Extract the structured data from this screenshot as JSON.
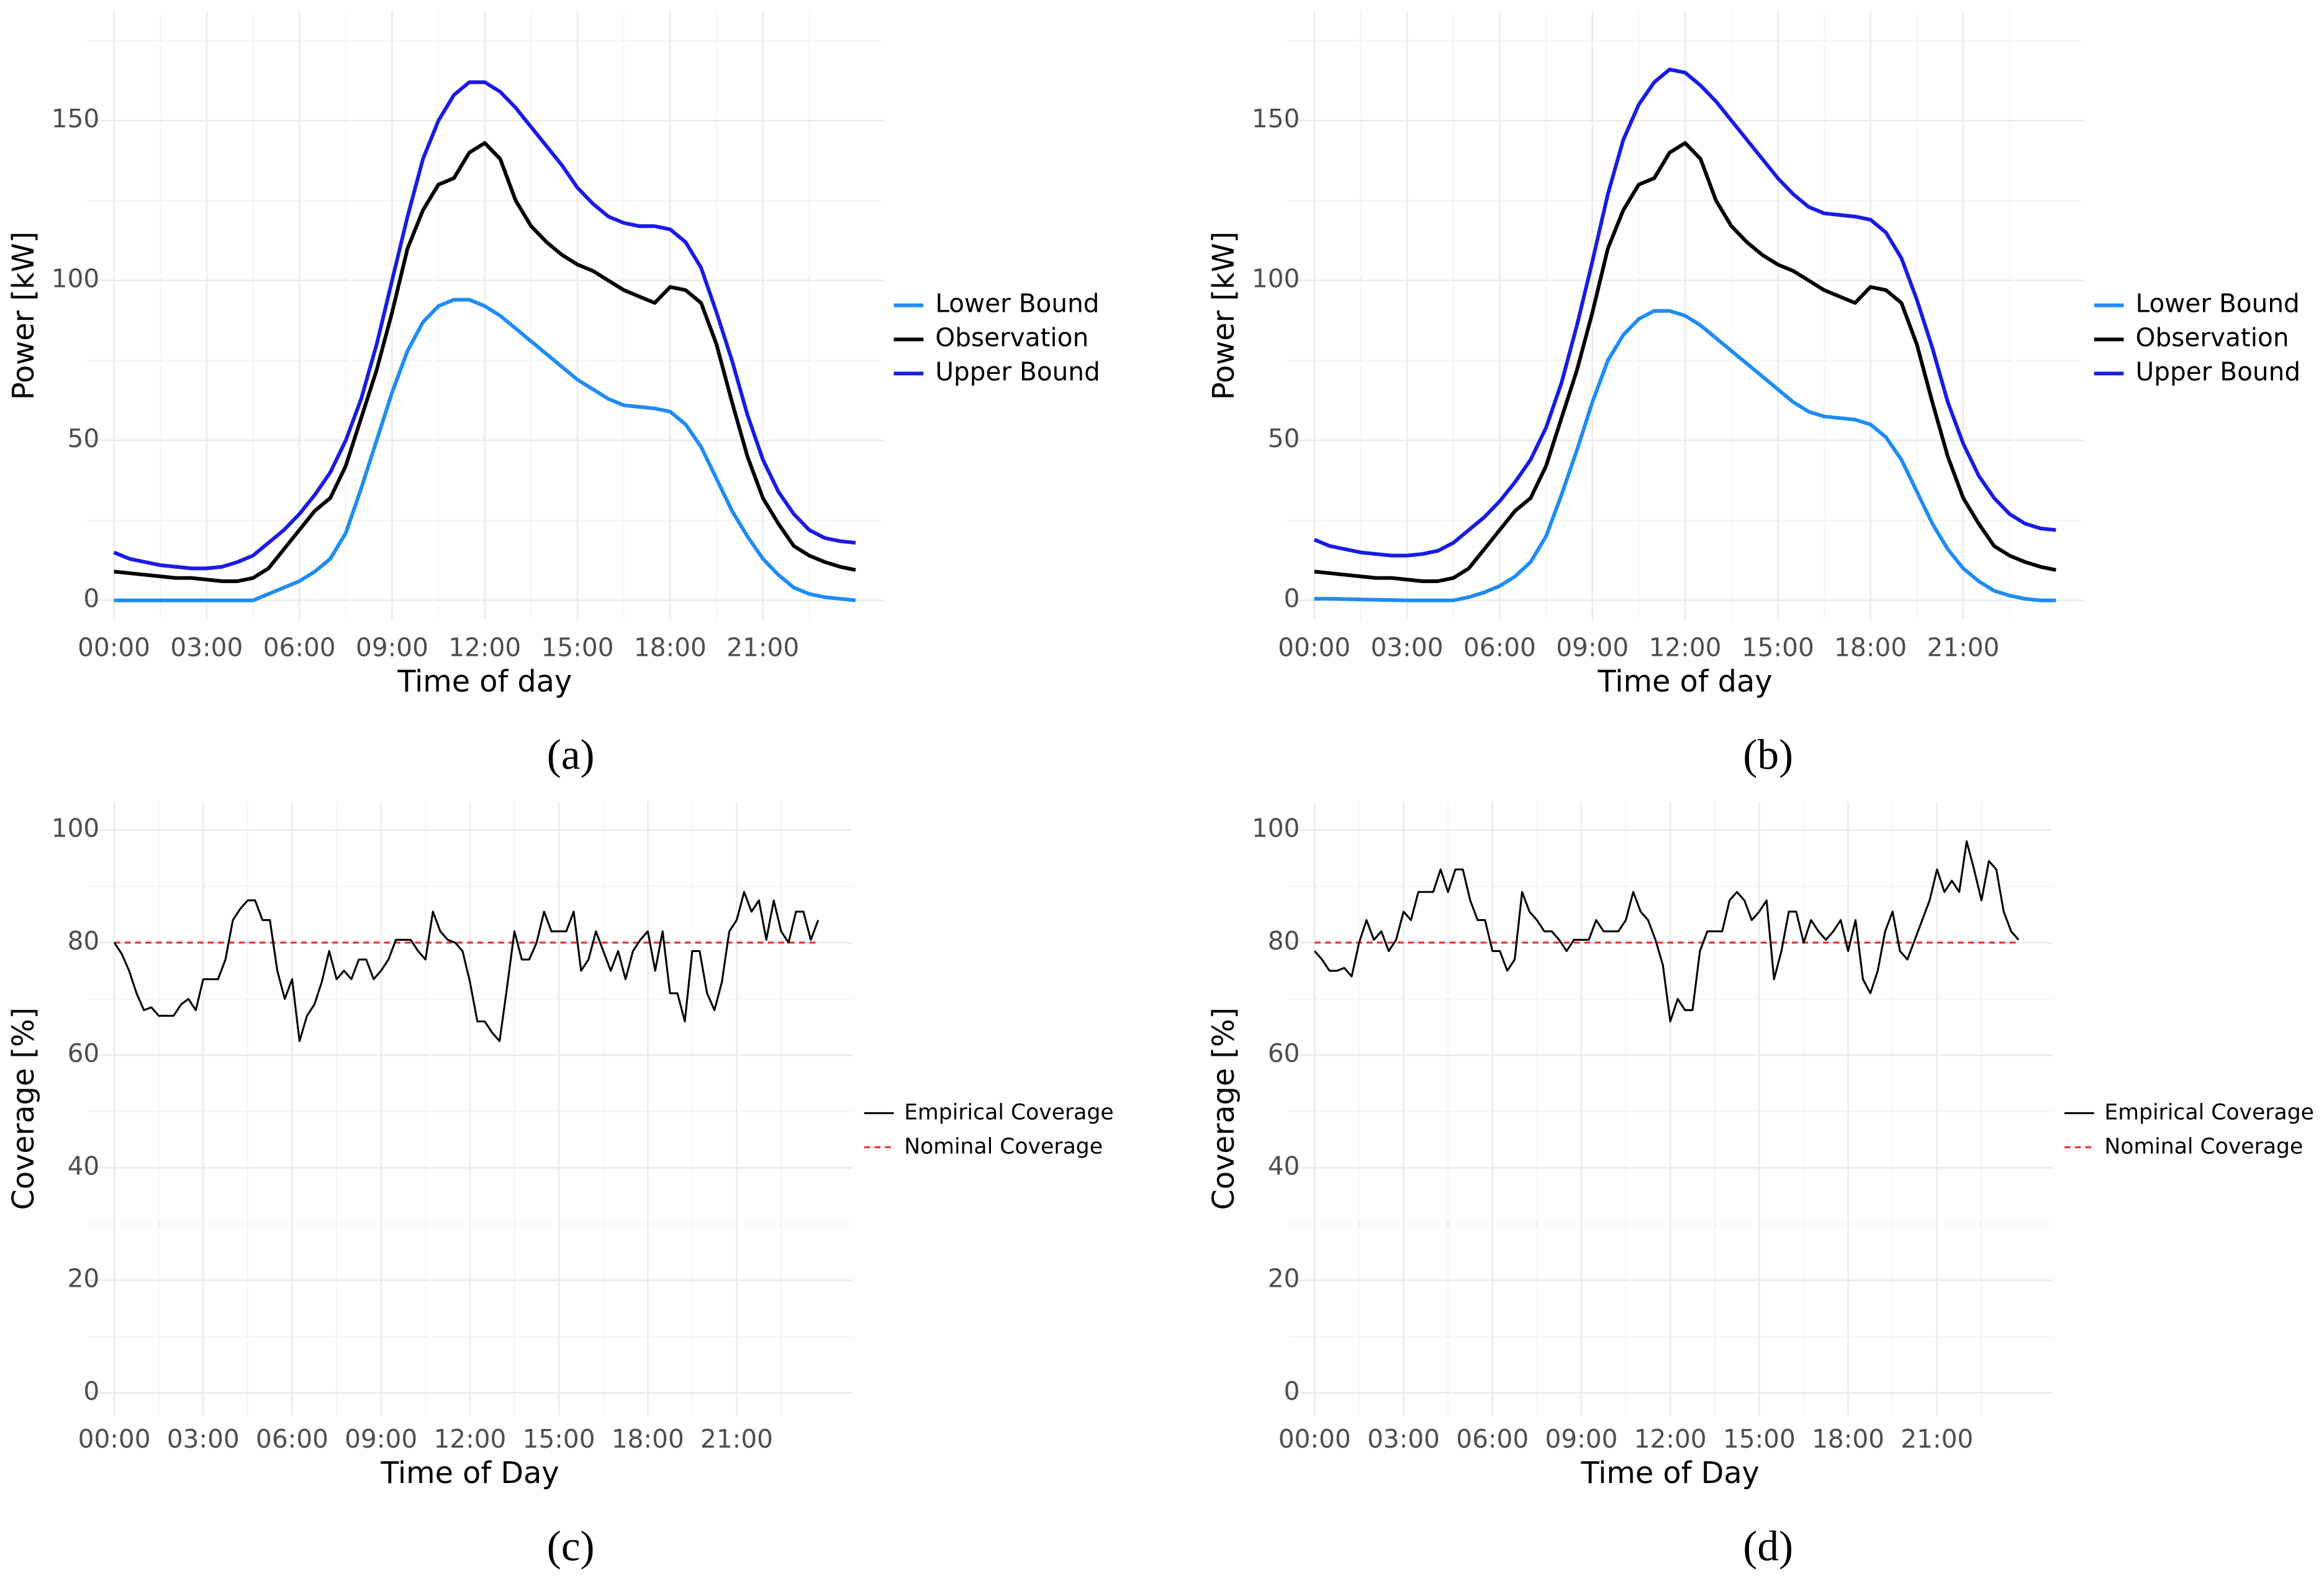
{
  "chart_data": [
    {
      "type": "line",
      "label": "(a)",
      "x_label": "Time of day",
      "y_label": "Power [kW]",
      "x": [
        0,
        0.5,
        1,
        1.5,
        2,
        2.5,
        3,
        3.5,
        4,
        4.5,
        5,
        5.5,
        6,
        6.5,
        7,
        7.5,
        8,
        8.5,
        9,
        9.5,
        10,
        10.5,
        11,
        11.5,
        12,
        12.5,
        13,
        13.5,
        14,
        14.5,
        15,
        15.5,
        16,
        16.5,
        17,
        17.5,
        18,
        18.5,
        19,
        19.5,
        20,
        20.5,
        21,
        21.5,
        22,
        22.5,
        23,
        23.5,
        24
      ],
      "series": [
        {
          "name": "Lower Bound",
          "color": "#1e8cf5",
          "values": [
            0,
            0,
            0,
            0,
            0,
            0,
            0,
            0,
            0,
            0,
            2,
            4,
            6,
            9,
            13,
            21,
            35,
            50,
            65,
            78,
            87,
            92,
            94,
            94,
            92,
            89,
            85,
            81,
            77,
            73,
            69,
            66,
            63,
            61,
            60.5,
            60,
            59,
            55,
            48,
            38,
            28,
            20,
            13,
            8,
            4,
            2,
            1,
            0.5,
            0
          ]
        },
        {
          "name": "Observation",
          "color": "#000000",
          "values": [
            9,
            8.5,
            8,
            7.5,
            7,
            7,
            6.5,
            6,
            6,
            7,
            10,
            16,
            22,
            28,
            32,
            42,
            57,
            72,
            90,
            110,
            122,
            130,
            132,
            140,
            143,
            138,
            125,
            117,
            112,
            108,
            105,
            103,
            100,
            97,
            95,
            93,
            98,
            97,
            93,
            80,
            62,
            45,
            32,
            24,
            17,
            14,
            12,
            10.5,
            9.5
          ]
        },
        {
          "name": "Upper Bound",
          "color": "#1a1ae6",
          "values": [
            15,
            13,
            12,
            11,
            10.5,
            10,
            10,
            10.5,
            12,
            14,
            18,
            22,
            27,
            33,
            40,
            50,
            63,
            80,
            100,
            120,
            138,
            150,
            158,
            162,
            162,
            159,
            154,
            148,
            142,
            136,
            129,
            124,
            120,
            118,
            117,
            117,
            116,
            112,
            104,
            90,
            75,
            58,
            44,
            34,
            27,
            22,
            19.5,
            18.5,
            18
          ]
        }
      ],
      "xlim": [
        -0.9,
        24.9
      ],
      "xticks": [
        {
          "value": 0,
          "label": "00:00"
        },
        {
          "value": 3,
          "label": "03:00"
        },
        {
          "value": 6,
          "label": "06:00"
        },
        {
          "value": 9,
          "label": "09:00"
        },
        {
          "value": 12,
          "label": "12:00"
        },
        {
          "value": 15,
          "label": "15:00"
        },
        {
          "value": 18,
          "label": "18:00"
        },
        {
          "value": 21,
          "label": "21:00"
        }
      ],
      "xminor": [
        1.5,
        4.5,
        7.5,
        10.5,
        13.5,
        16.5,
        19.5,
        22.5
      ],
      "ylim": [
        -6,
        184
      ],
      "yticks": [
        0,
        50,
        100,
        150
      ],
      "yminor": [
        25,
        75,
        125,
        175
      ],
      "grid": true,
      "legend": "right"
    },
    {
      "type": "line",
      "label": "(b)",
      "x_label": "Time of day",
      "y_label": "Power [kW]",
      "x": [
        0,
        0.5,
        1,
        1.5,
        2,
        2.5,
        3,
        3.5,
        4,
        4.5,
        5,
        5.5,
        6,
        6.5,
        7,
        7.5,
        8,
        8.5,
        9,
        9.5,
        10,
        10.5,
        11,
        11.5,
        12,
        12.5,
        13,
        13.5,
        14,
        14.5,
        15,
        15.5,
        16,
        16.5,
        17,
        17.5,
        18,
        18.5,
        19,
        19.5,
        20,
        20.5,
        21,
        21.5,
        22,
        22.5,
        23,
        23.5,
        24
      ],
      "series": [
        {
          "name": "Lower Bound",
          "color": "#1e8cf5",
          "values": [
            0.5,
            0.5,
            0.4,
            0.3,
            0.2,
            0.1,
            0,
            0,
            0,
            0,
            1,
            2.5,
            4.5,
            7.5,
            12,
            20,
            33,
            47,
            62,
            75,
            83,
            88,
            90.5,
            90.5,
            89,
            86,
            82,
            78,
            74,
            70,
            66,
            62,
            59,
            57.5,
            57,
            56.5,
            55,
            51,
            44,
            34,
            24,
            16,
            10,
            6,
            3,
            1.5,
            0.5,
            0,
            0
          ]
        },
        {
          "name": "Observation",
          "color": "#000000",
          "values": [
            9,
            8.5,
            8,
            7.5,
            7,
            7,
            6.5,
            6,
            6,
            7,
            10,
            16,
            22,
            28,
            32,
            42,
            57,
            72,
            90,
            110,
            122,
            130,
            132,
            140,
            143,
            138,
            125,
            117,
            112,
            108,
            105,
            103,
            100,
            97,
            95,
            93,
            98,
            97,
            93,
            80,
            62,
            45,
            32,
            24,
            17,
            14,
            12,
            10.5,
            9.5
          ]
        },
        {
          "name": "Upper Bound",
          "color": "#1a1ae6",
          "values": [
            19,
            17,
            16,
            15,
            14.5,
            14,
            14,
            14.5,
            15.5,
            18,
            22,
            26,
            31,
            37,
            44,
            54,
            68,
            86,
            106,
            127,
            144,
            155,
            162,
            166,
            165,
            161,
            156,
            150,
            144,
            138,
            132,
            127,
            123,
            121,
            120.5,
            120,
            119,
            115,
            107,
            94,
            79,
            62,
            49,
            39,
            32,
            27,
            24,
            22.5,
            22
          ]
        }
      ],
      "xlim": [
        -0.9,
        24.9
      ],
      "xticks": [
        {
          "value": 0,
          "label": "00:00"
        },
        {
          "value": 3,
          "label": "03:00"
        },
        {
          "value": 6,
          "label": "06:00"
        },
        {
          "value": 9,
          "label": "09:00"
        },
        {
          "value": 12,
          "label": "12:00"
        },
        {
          "value": 15,
          "label": "15:00"
        },
        {
          "value": 18,
          "label": "18:00"
        },
        {
          "value": 21,
          "label": "21:00"
        }
      ],
      "xminor": [
        1.5,
        4.5,
        7.5,
        10.5,
        13.5,
        16.5,
        19.5,
        22.5
      ],
      "ylim": [
        -6,
        184
      ],
      "yticks": [
        0,
        50,
        100,
        150
      ],
      "yminor": [
        25,
        75,
        125,
        175
      ],
      "grid": true,
      "legend": "right"
    },
    {
      "type": "line",
      "label": "(c)",
      "x_label": "Time of Day",
      "y_label": "Coverage [%]",
      "x": [
        0,
        0.25,
        0.5,
        0.75,
        1,
        1.25,
        1.5,
        1.75,
        2,
        2.25,
        2.5,
        2.75,
        3,
        3.25,
        3.5,
        3.75,
        4,
        4.25,
        4.5,
        4.75,
        5,
        5.25,
        5.5,
        5.75,
        6,
        6.25,
        6.5,
        6.75,
        7,
        7.25,
        7.5,
        7.75,
        8,
        8.25,
        8.5,
        8.75,
        9,
        9.25,
        9.5,
        9.75,
        10,
        10.25,
        10.5,
        10.75,
        11,
        11.25,
        11.5,
        11.75,
        12,
        12.25,
        12.5,
        12.75,
        13,
        13.25,
        13.5,
        13.75,
        14,
        14.25,
        14.5,
        14.75,
        15,
        15.25,
        15.5,
        15.75,
        16,
        16.25,
        16.5,
        16.75,
        17,
        17.25,
        17.5,
        17.75,
        18,
        18.25,
        18.5,
        18.75,
        19,
        19.25,
        19.5,
        19.75,
        20,
        20.25,
        20.5,
        20.75,
        21,
        21.25,
        21.5,
        21.75,
        22,
        22.25,
        22.5,
        22.75,
        23,
        23.25,
        23.5,
        23.75
      ],
      "series": [
        {
          "name": "Empirical Coverage",
          "color": "#000000",
          "values": [
            80,
            78,
            75,
            71,
            68,
            68.5,
            67,
            67,
            67,
            69,
            70,
            68,
            73.5,
            73.5,
            73.5,
            77,
            84,
            86,
            87.5,
            87.5,
            84,
            84,
            75,
            70,
            73.5,
            62.5,
            67,
            69,
            73,
            78.5,
            73.5,
            75,
            73.5,
            77,
            77,
            73.5,
            75,
            77,
            80.5,
            80.5,
            80.5,
            78.5,
            77,
            85.5,
            82,
            80.5,
            80,
            78.5,
            73,
            66,
            66,
            64,
            62.5,
            72,
            82,
            77,
            77,
            80,
            85.5,
            82,
            82,
            82,
            85.5,
            75,
            77,
            82,
            78.5,
            75,
            78.5,
            73.5,
            78.5,
            80.5,
            82,
            75,
            82,
            71,
            71,
            66,
            78.5,
            78.5,
            71,
            68,
            73,
            82,
            84,
            89,
            85.5,
            87.5,
            80.5,
            87.5,
            82,
            80,
            85.5,
            85.5,
            80.5,
            84
          ]
        }
      ],
      "reference_line": {
        "name": "Nominal Coverage",
        "value": 80,
        "color": "#f0282d",
        "style": "dashed"
      },
      "xlim": [
        -0.9,
        24.9
      ],
      "xticks": [
        {
          "value": 0,
          "label": "00:00"
        },
        {
          "value": 3,
          "label": "03:00"
        },
        {
          "value": 6,
          "label": "06:00"
        },
        {
          "value": 9,
          "label": "09:00"
        },
        {
          "value": 12,
          "label": "12:00"
        },
        {
          "value": 15,
          "label": "15:00"
        },
        {
          "value": 18,
          "label": "18:00"
        },
        {
          "value": 21,
          "label": "21:00"
        }
      ],
      "xminor": [
        1.5,
        4.5,
        7.5,
        10.5,
        13.5,
        16.5,
        19.5,
        22.5
      ],
      "ylim": [
        -4,
        105
      ],
      "yticks": [
        0,
        20,
        40,
        60,
        80,
        100
      ],
      "yminor": [
        10,
        30,
        50,
        70,
        90
      ],
      "grid": true,
      "legend": "right"
    },
    {
      "type": "line",
      "label": "(d)",
      "x_label": "Time of Day",
      "y_label": "Coverage [%]",
      "x": [
        0,
        0.25,
        0.5,
        0.75,
        1,
        1.25,
        1.5,
        1.75,
        2,
        2.25,
        2.5,
        2.75,
        3,
        3.25,
        3.5,
        3.75,
        4,
        4.25,
        4.5,
        4.75,
        5,
        5.25,
        5.5,
        5.75,
        6,
        6.25,
        6.5,
        6.75,
        7,
        7.25,
        7.5,
        7.75,
        8,
        8.25,
        8.5,
        8.75,
        9,
        9.25,
        9.5,
        9.75,
        10,
        10.25,
        10.5,
        10.75,
        11,
        11.25,
        11.5,
        11.75,
        12,
        12.25,
        12.5,
        12.75,
        13,
        13.25,
        13.5,
        13.75,
        14,
        14.25,
        14.5,
        14.75,
        15,
        15.25,
        15.5,
        15.75,
        16,
        16.25,
        16.5,
        16.75,
        17,
        17.25,
        17.5,
        17.75,
        18,
        18.25,
        18.5,
        18.75,
        19,
        19.25,
        19.5,
        19.75,
        20,
        20.25,
        20.5,
        20.75,
        21,
        21.25,
        21.5,
        21.75,
        22,
        22.25,
        22.5,
        22.75,
        23,
        23.25,
        23.5,
        23.75
      ],
      "series": [
        {
          "name": "Empirical Coverage",
          "color": "#000000",
          "values": [
            78.5,
            77,
            75,
            75,
            75.5,
            74,
            80,
            84,
            80.5,
            82,
            78.5,
            80.5,
            85.5,
            84,
            89,
            89,
            89,
            93,
            89,
            93,
            93,
            87.5,
            84,
            84,
            78.5,
            78.5,
            75,
            77,
            89,
            85.5,
            84,
            82,
            82,
            80.5,
            78.5,
            80.5,
            80.5,
            80.5,
            84,
            82,
            82,
            82,
            84,
            89,
            85.5,
            84,
            80.5,
            76,
            66,
            70,
            68,
            68,
            78.5,
            82,
            82,
            82,
            87.5,
            89,
            87.5,
            84,
            85.5,
            87.5,
            73.5,
            78.5,
            85.5,
            85.5,
            80,
            84,
            82,
            80.5,
            82,
            84,
            78.5,
            84,
            73.5,
            71,
            75,
            82,
            85.5,
            78.5,
            77,
            80.5,
            84,
            87.5,
            93,
            89,
            91,
            89,
            98,
            93,
            87.5,
            94.5,
            93,
            85.5,
            82,
            80.5
          ]
        }
      ],
      "reference_line": {
        "name": "Nominal Coverage",
        "value": 80,
        "color": "#f0282d",
        "style": "dashed"
      },
      "xlim": [
        -0.9,
        24.9
      ],
      "xticks": [
        {
          "value": 0,
          "label": "00:00"
        },
        {
          "value": 3,
          "label": "03:00"
        },
        {
          "value": 6,
          "label": "06:00"
        },
        {
          "value": 9,
          "label": "09:00"
        },
        {
          "value": 12,
          "label": "12:00"
        },
        {
          "value": 15,
          "label": "15:00"
        },
        {
          "value": 18,
          "label": "18:00"
        },
        {
          "value": 21,
          "label": "21:00"
        }
      ],
      "xminor": [
        1.5,
        4.5,
        7.5,
        10.5,
        13.5,
        16.5,
        19.5,
        22.5
      ],
      "ylim": [
        -4,
        105
      ],
      "yticks": [
        0,
        20,
        40,
        60,
        80,
        100
      ],
      "yminor": [
        10,
        30,
        50,
        70,
        90
      ],
      "grid": true,
      "legend": "right"
    }
  ]
}
